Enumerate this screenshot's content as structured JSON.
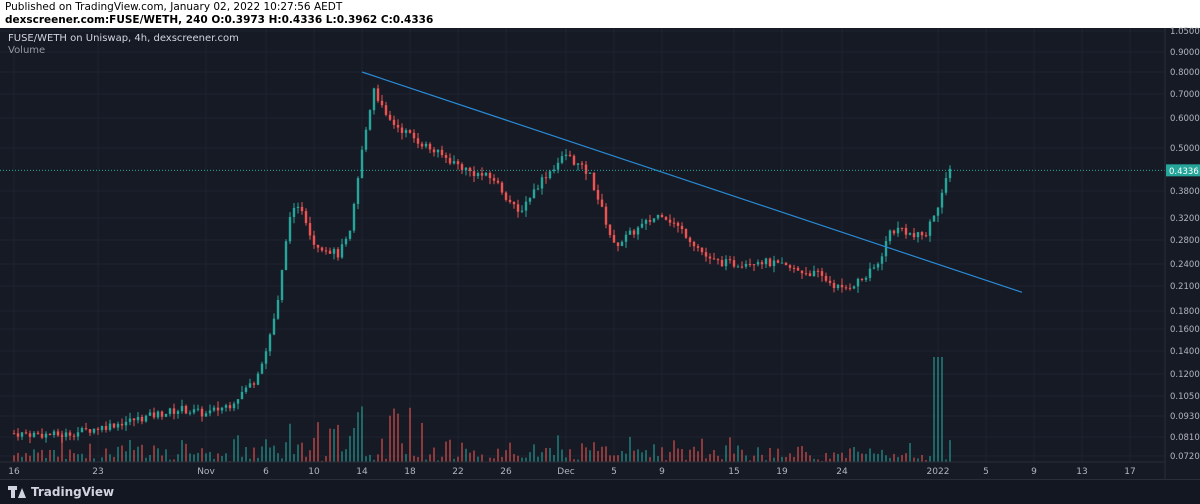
{
  "header": {
    "published": "Published on TradingView.com, January 02, 2022 10:27:56 AEDT",
    "ohlc": "dexscreener.com:FUSE/WETH, 240 O:0.3973 H:0.4336 L:0.3962 C:0.4336"
  },
  "legend": {
    "title": "FUSE/WETH on Uniswap, 4h, dexscreener.com",
    "volume": "Volume"
  },
  "footer": {
    "brand": "TradingView"
  },
  "colors": {
    "up": "#26a69a",
    "down": "#ef5350",
    "trendline": "#2a8ad4",
    "background": "#161a25",
    "grid": "#1f2330"
  },
  "chart_data": {
    "type": "candlestick",
    "title": "FUSE/WETH on Uniswap, 4h, dexscreener.com",
    "x_ticks": [
      "16",
      "23",
      "Nov",
      "6",
      "10",
      "14",
      "18",
      "22",
      "26",
      "Dec",
      "5",
      "9",
      "15",
      "19",
      "24",
      "2022",
      "5",
      "9",
      "13",
      "17"
    ],
    "y_ticks": [
      "1.0500",
      "0.9000",
      "0.8000",
      "0.7000",
      "0.6000",
      "0.5000",
      "0.3800",
      "0.3200",
      "0.2800",
      "0.2400",
      "0.2100",
      "0.1800",
      "0.1600",
      "0.1400",
      "0.1200",
      "0.1050",
      "0.0930",
      "0.0810",
      "0.0720"
    ],
    "y_scale": "log",
    "last_price": "0.4336",
    "grid": true,
    "price_path": [
      [
        "Oct 16",
        0.083
      ],
      [
        "Oct 20",
        0.082
      ],
      [
        "Oct 23",
        0.086
      ],
      [
        "Oct 28",
        0.094
      ],
      [
        "Oct 30",
        0.097
      ],
      [
        "Nov 1",
        0.094
      ],
      [
        "Nov 3",
        0.1
      ],
      [
        "Nov 5",
        0.115
      ],
      [
        "Nov 6",
        0.14
      ],
      [
        "Nov 7",
        0.19
      ],
      [
        "Nov 8",
        0.33
      ],
      [
        "Nov 9",
        0.34
      ],
      [
        "Nov 10",
        0.275
      ],
      [
        "Nov 11",
        0.265
      ],
      [
        "Nov 12",
        0.255
      ],
      [
        "Nov 13",
        0.29
      ],
      [
        "Nov 14",
        0.49
      ],
      [
        "Nov 15",
        0.73
      ],
      [
        "Nov 16",
        0.6
      ],
      [
        "Nov 18",
        0.54
      ],
      [
        "Nov 20",
        0.49
      ],
      [
        "Nov 23",
        0.43
      ],
      [
        "Nov 25",
        0.41
      ],
      [
        "Nov 27",
        0.33
      ],
      [
        "Nov 29",
        0.41
      ],
      [
        "Dec 1",
        0.48
      ],
      [
        "Dec 3",
        0.42
      ],
      [
        "Dec 5",
        0.27
      ],
      [
        "Dec 7",
        0.3
      ],
      [
        "Dec 9",
        0.33
      ],
      [
        "Dec 11",
        0.29
      ],
      [
        "Dec 13",
        0.245
      ],
      [
        "Dec 15",
        0.24
      ],
      [
        "Dec 17",
        0.246
      ],
      [
        "Dec 20",
        0.232
      ],
      [
        "Dec 22",
        0.225
      ],
      [
        "Dec 24",
        0.205
      ],
      [
        "Dec 26",
        0.222
      ],
      [
        "Dec 27",
        0.24
      ],
      [
        "Dec 28",
        0.295
      ],
      [
        "Dec 29",
        0.3
      ],
      [
        "Dec 30",
        0.285
      ],
      [
        "Dec 31",
        0.29
      ],
      [
        "Jan 1",
        0.35
      ],
      [
        "Jan 2",
        0.4336
      ]
    ],
    "trendline": [
      [
        "Nov 14",
        0.8
      ],
      [
        "Jan 8",
        0.202
      ]
    ],
    "volume_panel": {
      "label": "Volume"
    }
  }
}
